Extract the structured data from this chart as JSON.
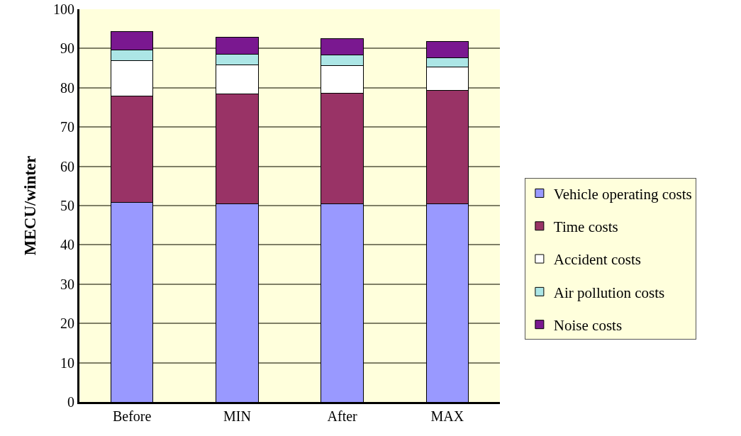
{
  "chart_data": {
    "type": "bar",
    "stacked": true,
    "ylabel": "MECU/winter",
    "categories": [
      "Before",
      "MIN",
      "After",
      "MAX"
    ],
    "series": [
      {
        "name": "Vehicle operating costs",
        "color": "#9999ff",
        "values": [
          50.9,
          50.5,
          50.4,
          50.4
        ]
      },
      {
        "name": "Time costs",
        "color": "#993366",
        "values": [
          26.9,
          27.9,
          28.2,
          28.9
        ]
      },
      {
        "name": "Accident costs",
        "color": "#ffffff",
        "values": [
          9.1,
          7.5,
          7.0,
          5.9
        ]
      },
      {
        "name": "Air pollution costs",
        "color": "#ace6e6",
        "values": [
          2.7,
          2.7,
          2.8,
          2.5
        ]
      },
      {
        "name": "Noise costs",
        "color": "#7a1890",
        "values": [
          4.8,
          4.2,
          4.1,
          4.1
        ]
      }
    ],
    "ylim": [
      0,
      100
    ],
    "yticks": [
      0,
      10,
      20,
      30,
      40,
      50,
      60,
      70,
      80,
      90,
      100
    ],
    "grid": "y",
    "legend": "right"
  }
}
